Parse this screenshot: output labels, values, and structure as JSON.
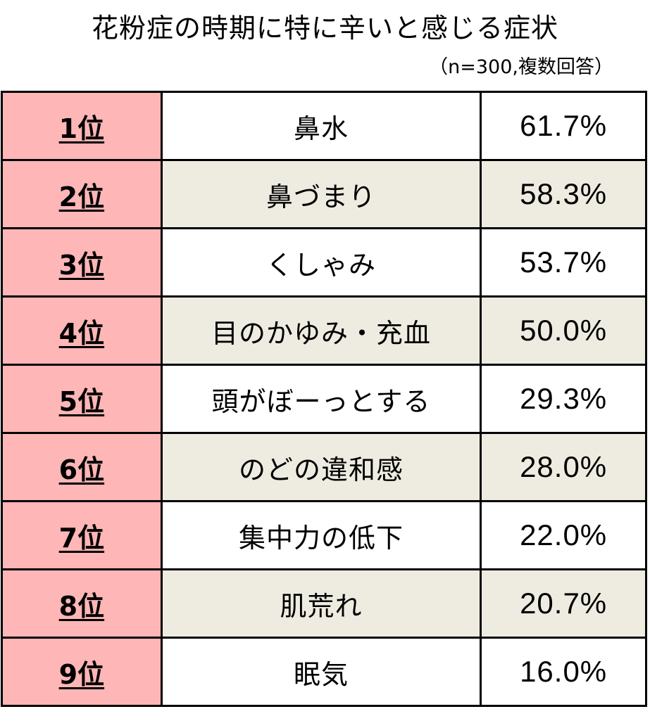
{
  "title": "花粉症の時期に特に辛いと感じる症状",
  "subtitle": "（n=300,複数回答）",
  "colors": {
    "rank_fill": "#ffb6b6",
    "shaded_row_fill": "#eeece1",
    "white_row_fill": "#ffffff",
    "border": "#000000"
  },
  "chart_data": {
    "type": "table",
    "title": "花粉症の時期に特に辛いと感じる症状",
    "subtitle": "（n=300,複数回答）",
    "columns": [
      "rank",
      "symptom",
      "percent"
    ],
    "rows": [
      {
        "rank": "1位",
        "symptom": "鼻水",
        "percent": "61.7%",
        "value": 61.7
      },
      {
        "rank": "2位",
        "symptom": "鼻づまり",
        "percent": "58.3%",
        "value": 58.3
      },
      {
        "rank": "3位",
        "symptom": "くしゃみ",
        "percent": "53.7%",
        "value": 53.7
      },
      {
        "rank": "4位",
        "symptom": "目のかゆみ・充血",
        "percent": "50.0%",
        "value": 50.0
      },
      {
        "rank": "5位",
        "symptom": "頭がぼーっとする",
        "percent": "29.3%",
        "value": 29.3
      },
      {
        "rank": "6位",
        "symptom": "のどの違和感",
        "percent": "28.0%",
        "value": 28.0
      },
      {
        "rank": "7位",
        "symptom": "集中力の低下",
        "percent": "22.0%",
        "value": 22.0
      },
      {
        "rank": "8位",
        "symptom": "肌荒れ",
        "percent": "20.7%",
        "value": 20.7
      },
      {
        "rank": "9位",
        "symptom": "眠気",
        "percent": "16.0%",
        "value": 16.0
      }
    ]
  }
}
